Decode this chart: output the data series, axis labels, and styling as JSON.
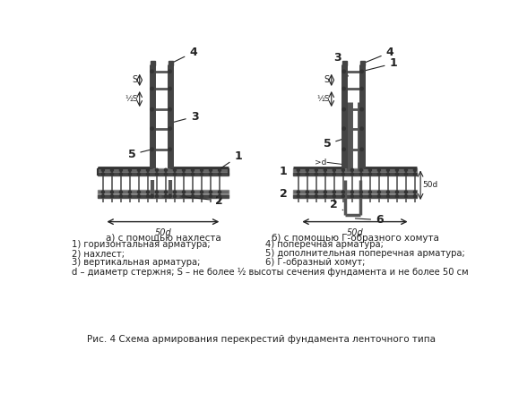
{
  "title": "Рис. 4 Схема армирования перекрестий фундамента ленточного типа",
  "subtitle_a": "а) с помощью нахлеста",
  "subtitle_b": "б) с помощью Г-образного хомута",
  "leg1": "1) горизонтальная арматура;",
  "leg2": "2) нахлест;",
  "leg3": "3) вертикальная арматура;",
  "leg4": "4) поперечная арматура;",
  "leg5": "5) дополнительная поперечная арматура;",
  "leg6": "6) Г-образный хомут;",
  "leg_d": "d – диаметр стержня; S – не более ½ высоты сечения фундамента и не более 50 см",
  "bg_color": "#ffffff",
  "dark": "#222222",
  "gray": "#555555",
  "lgray": "#888888"
}
